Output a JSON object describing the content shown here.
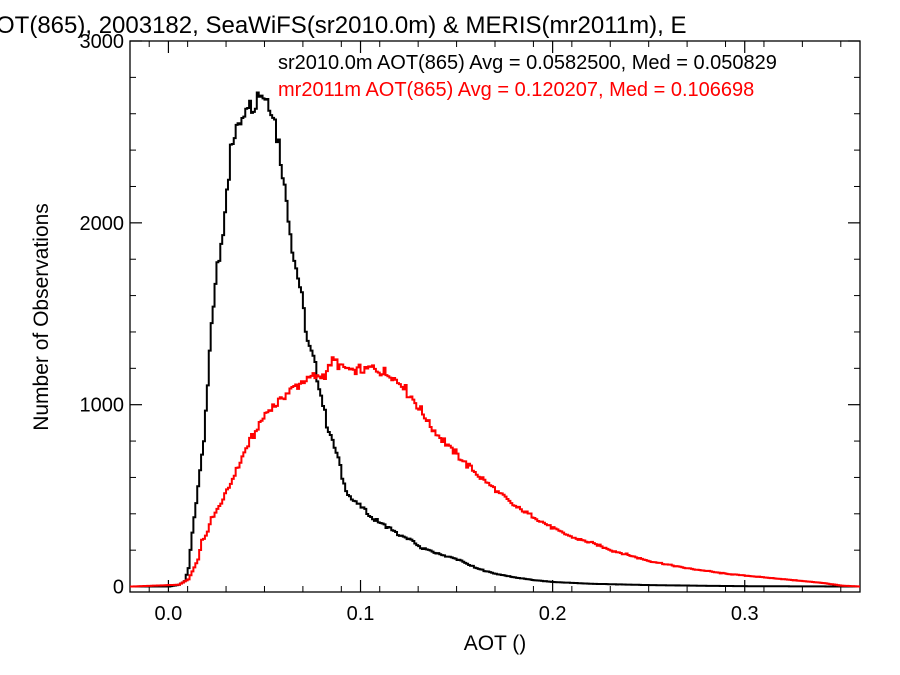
{
  "chart_data": {
    "type": "line",
    "title": "OT(865), 2003182, SeaWiFS(sr2010.0m) & MERIS(mr2011m), E",
    "xlabel": "AOT ()",
    "ylabel": "Number of Observations",
    "xlim": [
      -0.02,
      0.36
    ],
    "ylim": [
      -30,
      3000
    ],
    "x_ticks": [
      0.0,
      0.1,
      0.2,
      0.3
    ],
    "x_tick_labels": [
      "0.0",
      "0.1",
      "0.2",
      "0.3"
    ],
    "y_ticks": [
      0,
      1000,
      2000,
      3000
    ],
    "y_tick_labels": [
      "0",
      "1000",
      "2000",
      "3000"
    ],
    "grid": false,
    "legend_position": "top-right",
    "series": [
      {
        "name": "sr2010.0m",
        "legend": "sr2010.0m AOT(865) Avg = 0.0582500, Med = 0.050829",
        "color": "#000000",
        "x": [
          -0.02,
          0.0,
          0.005,
          0.008,
          0.01,
          0.012,
          0.015,
          0.018,
          0.02,
          0.022,
          0.025,
          0.028,
          0.03,
          0.032,
          0.035,
          0.038,
          0.04,
          0.042,
          0.045,
          0.047,
          0.05,
          0.052,
          0.055,
          0.058,
          0.06,
          0.062,
          0.065,
          0.068,
          0.07,
          0.072,
          0.075,
          0.078,
          0.08,
          0.082,
          0.085,
          0.088,
          0.09,
          0.092,
          0.095,
          0.1,
          0.105,
          0.11,
          0.115,
          0.12,
          0.125,
          0.13,
          0.14,
          0.15,
          0.16,
          0.17,
          0.18,
          0.19,
          0.2,
          0.22,
          0.25,
          0.28,
          0.3,
          0.33,
          0.36
        ],
        "y": [
          0,
          0,
          10,
          30,
          100,
          300,
          550,
          800,
          1100,
          1450,
          1750,
          1950,
          2200,
          2380,
          2520,
          2610,
          2660,
          2650,
          2700,
          2710,
          2700,
          2660,
          2560,
          2360,
          2200,
          2050,
          1800,
          1650,
          1500,
          1350,
          1250,
          1100,
          1000,
          900,
          800,
          700,
          600,
          530,
          480,
          440,
          380,
          350,
          320,
          280,
          260,
          220,
          180,
          150,
          100,
          70,
          50,
          35,
          25,
          15,
          8,
          4,
          2,
          1,
          0
        ]
      },
      {
        "name": "mr2011m",
        "legend": "mr2011m AOT(865) Avg = 0.120207, Med = 0.106698",
        "color": "#ff0000",
        "x": [
          -0.02,
          0.005,
          0.01,
          0.015,
          0.017,
          0.02,
          0.022,
          0.025,
          0.03,
          0.035,
          0.04,
          0.045,
          0.05,
          0.055,
          0.06,
          0.065,
          0.07,
          0.075,
          0.08,
          0.085,
          0.09,
          0.095,
          0.1,
          0.105,
          0.11,
          0.115,
          0.12,
          0.125,
          0.13,
          0.135,
          0.14,
          0.145,
          0.15,
          0.16,
          0.17,
          0.18,
          0.19,
          0.2,
          0.21,
          0.22,
          0.23,
          0.24,
          0.25,
          0.26,
          0.27,
          0.28,
          0.29,
          0.3,
          0.31,
          0.32,
          0.33,
          0.34,
          0.35,
          0.36
        ],
        "y": [
          0,
          10,
          40,
          150,
          250,
          300,
          380,
          420,
          520,
          640,
          760,
          850,
          950,
          1000,
          1050,
          1100,
          1130,
          1150,
          1160,
          1240,
          1210,
          1180,
          1190,
          1200,
          1180,
          1160,
          1120,
          1060,
          980,
          900,
          830,
          780,
          720,
          620,
          530,
          440,
          380,
          320,
          270,
          240,
          200,
          170,
          140,
          120,
          100,
          85,
          70,
          60,
          50,
          40,
          30,
          20,
          5,
          0
        ]
      }
    ]
  }
}
